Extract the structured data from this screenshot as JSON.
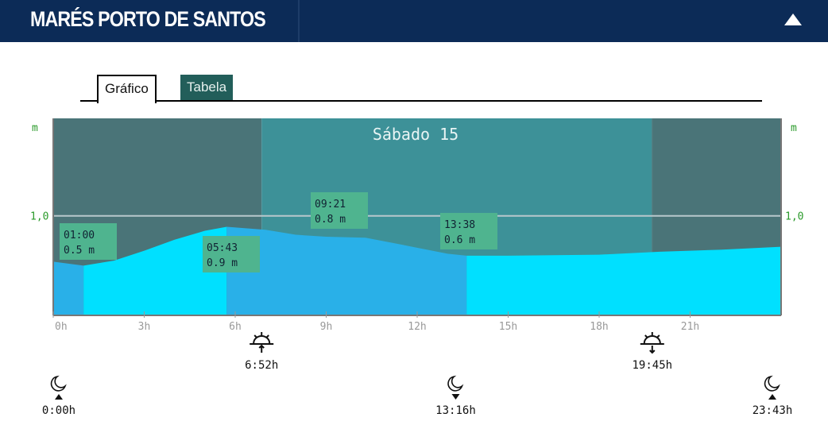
{
  "header": {
    "title": "MARÉS PORTO DE SANTOS"
  },
  "tabs": [
    {
      "label": "Gráfico",
      "active": true
    },
    {
      "label": "Tabela",
      "active": false
    }
  ],
  "chart_data": {
    "type": "area",
    "title": "Sábado 15",
    "ylabel": "m",
    "ylabel_right": "m",
    "ytick_label": "1,0",
    "ytick_value": 1.0,
    "ylim": [
      0,
      1.98
    ],
    "xlim": [
      0,
      24
    ],
    "xticks": [
      {
        "v": 0,
        "l": "0h"
      },
      {
        "v": 3,
        "l": "3h"
      },
      {
        "v": 6,
        "l": "6h"
      },
      {
        "v": 9,
        "l": "9h"
      },
      {
        "v": 12,
        "l": "12h"
      },
      {
        "v": 15,
        "l": "15h"
      },
      {
        "v": 18,
        "l": "18h"
      },
      {
        "v": 21,
        "l": "21h"
      }
    ],
    "curve": [
      [
        0,
        0.54
      ],
      [
        1,
        0.5
      ],
      [
        2,
        0.55
      ],
      [
        3,
        0.65
      ],
      [
        4,
        0.76
      ],
      [
        5,
        0.85
      ],
      [
        5.72,
        0.89
      ],
      [
        7,
        0.86
      ],
      [
        8,
        0.81
      ],
      [
        9,
        0.79
      ],
      [
        10.3,
        0.78
      ],
      [
        11,
        0.74
      ],
      [
        12,
        0.68
      ],
      [
        13,
        0.62
      ],
      [
        13.63,
        0.6
      ],
      [
        15,
        0.6
      ],
      [
        18,
        0.61
      ],
      [
        20,
        0.64
      ],
      [
        22,
        0.66
      ],
      [
        24,
        0.69
      ]
    ],
    "phases": [
      {
        "from": 0,
        "to": 1,
        "color": "#29b0e8"
      },
      {
        "from": 1,
        "to": 5.72,
        "color": "#00e0ff"
      },
      {
        "from": 5.72,
        "to": 13.63,
        "color": "#29b0e8"
      },
      {
        "from": 13.63,
        "to": 24,
        "color": "#00e0ff"
      }
    ],
    "daylight": {
      "from": 6.87,
      "to": 19.75,
      "day_color": "#3d9198",
      "night_color": "#4a7478"
    },
    "tides": [
      {
        "time": "01:00",
        "height": "0.5 m",
        "x": 1,
        "y": 0.5
      },
      {
        "time": "05:43",
        "height": "0.9 m",
        "x": 5.72,
        "y": 0.89
      },
      {
        "time": "09:21",
        "height": "0.8 m",
        "x": 9.35,
        "y": 0.79
      },
      {
        "time": "13:38",
        "height": "0.6 m",
        "x": 13.63,
        "y": 0.6
      }
    ],
    "sun": [
      {
        "type": "sunrise",
        "time": "6:52h",
        "x": 6.87
      },
      {
        "type": "sunset",
        "time": "19:45h",
        "x": 19.75
      }
    ],
    "moon": [
      {
        "type": "moonrise",
        "time": "0:00h",
        "x": 0
      },
      {
        "type": "moonset",
        "time": "13:16h",
        "x": 13.27
      },
      {
        "type": "moonrise",
        "time": "23:43h",
        "x": 23.72
      }
    ]
  }
}
